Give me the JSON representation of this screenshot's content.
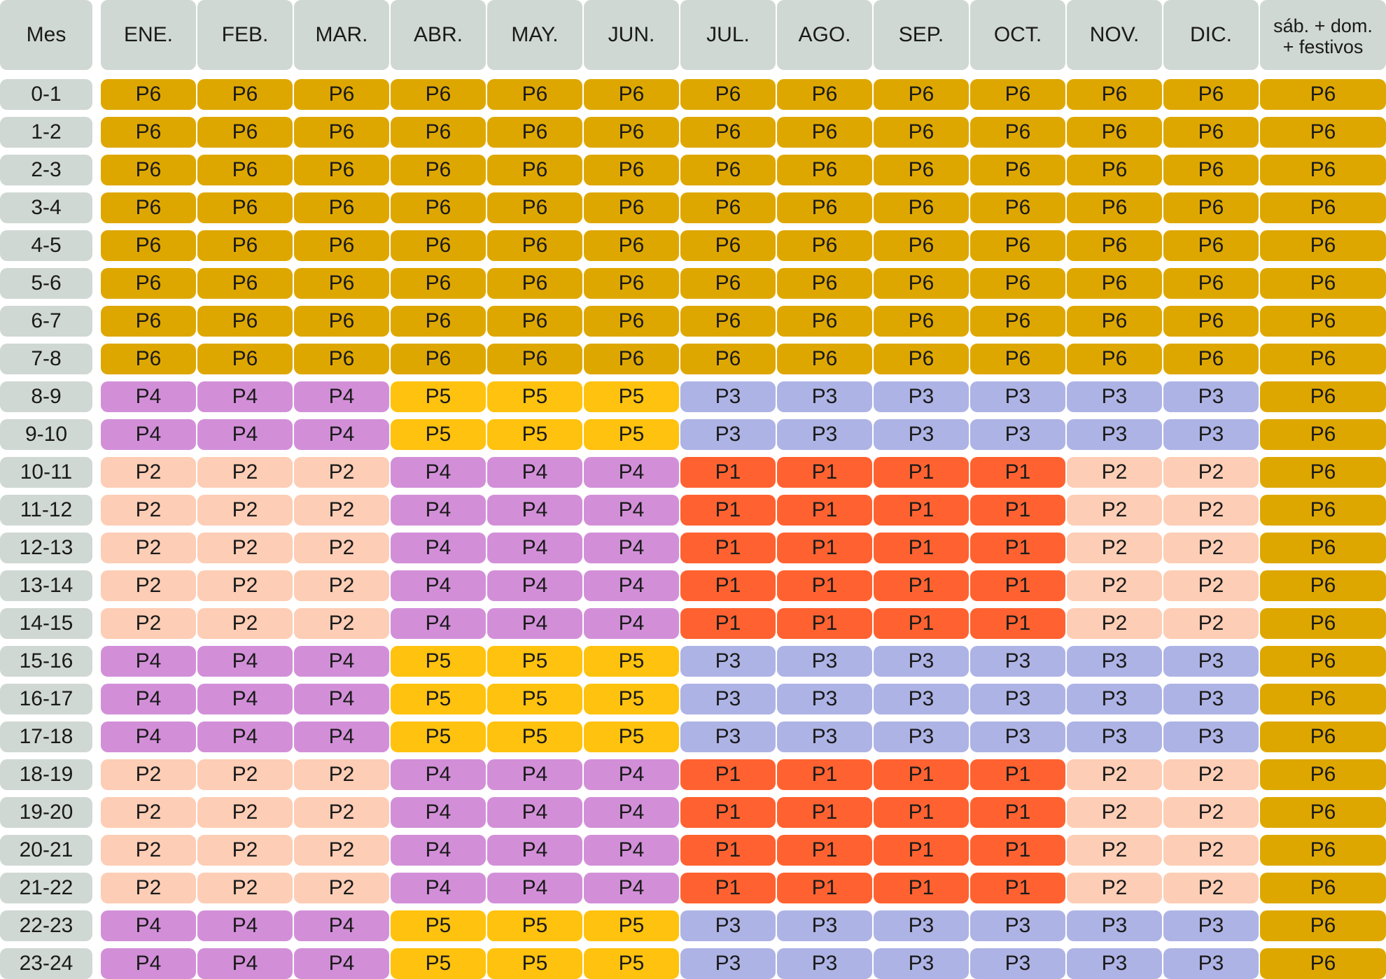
{
  "chart_data": {
    "type": "table",
    "corner_label": "Mes",
    "columns": [
      "ENE.",
      "FEB.",
      "MAR.",
      "ABR.",
      "MAY.",
      "JUN.",
      "JUL.",
      "AGO.",
      "SEP.",
      "OCT.",
      "NOV.",
      "DIC.",
      "sáb. + dom.\n+ festivos"
    ],
    "row_labels": [
      "0-1",
      "1-2",
      "2-3",
      "3-4",
      "4-5",
      "5-6",
      "6-7",
      "7-8",
      "8-9",
      "9-10",
      "10-11",
      "11-12",
      "12-13",
      "13-14",
      "14-15",
      "15-16",
      "16-17",
      "17-18",
      "18-19",
      "19-20",
      "20-21",
      "21-22",
      "22-23",
      "23-24"
    ],
    "rows": [
      [
        "P6",
        "P6",
        "P6",
        "P6",
        "P6",
        "P6",
        "P6",
        "P6",
        "P6",
        "P6",
        "P6",
        "P6",
        "P6"
      ],
      [
        "P6",
        "P6",
        "P6",
        "P6",
        "P6",
        "P6",
        "P6",
        "P6",
        "P6",
        "P6",
        "P6",
        "P6",
        "P6"
      ],
      [
        "P6",
        "P6",
        "P6",
        "P6",
        "P6",
        "P6",
        "P6",
        "P6",
        "P6",
        "P6",
        "P6",
        "P6",
        "P6"
      ],
      [
        "P6",
        "P6",
        "P6",
        "P6",
        "P6",
        "P6",
        "P6",
        "P6",
        "P6",
        "P6",
        "P6",
        "P6",
        "P6"
      ],
      [
        "P6",
        "P6",
        "P6",
        "P6",
        "P6",
        "P6",
        "P6",
        "P6",
        "P6",
        "P6",
        "P6",
        "P6",
        "P6"
      ],
      [
        "P6",
        "P6",
        "P6",
        "P6",
        "P6",
        "P6",
        "P6",
        "P6",
        "P6",
        "P6",
        "P6",
        "P6",
        "P6"
      ],
      [
        "P6",
        "P6",
        "P6",
        "P6",
        "P6",
        "P6",
        "P6",
        "P6",
        "P6",
        "P6",
        "P6",
        "P6",
        "P6"
      ],
      [
        "P6",
        "P6",
        "P6",
        "P6",
        "P6",
        "P6",
        "P6",
        "P6",
        "P6",
        "P6",
        "P6",
        "P6",
        "P6"
      ],
      [
        "P4",
        "P4",
        "P4",
        "P5",
        "P5",
        "P5",
        "P3",
        "P3",
        "P3",
        "P3",
        "P3",
        "P3",
        "P6"
      ],
      [
        "P4",
        "P4",
        "P4",
        "P5",
        "P5",
        "P5",
        "P3",
        "P3",
        "P3",
        "P3",
        "P3",
        "P3",
        "P6"
      ],
      [
        "P2",
        "P2",
        "P2",
        "P4",
        "P4",
        "P4",
        "P1",
        "P1",
        "P1",
        "P1",
        "P2",
        "P2",
        "P6"
      ],
      [
        "P2",
        "P2",
        "P2",
        "P4",
        "P4",
        "P4",
        "P1",
        "P1",
        "P1",
        "P1",
        "P2",
        "P2",
        "P6"
      ],
      [
        "P2",
        "P2",
        "P2",
        "P4",
        "P4",
        "P4",
        "P1",
        "P1",
        "P1",
        "P1",
        "P2",
        "P2",
        "P6"
      ],
      [
        "P2",
        "P2",
        "P2",
        "P4",
        "P4",
        "P4",
        "P1",
        "P1",
        "P1",
        "P1",
        "P2",
        "P2",
        "P6"
      ],
      [
        "P2",
        "P2",
        "P2",
        "P4",
        "P4",
        "P4",
        "P1",
        "P1",
        "P1",
        "P1",
        "P2",
        "P2",
        "P6"
      ],
      [
        "P4",
        "P4",
        "P4",
        "P5",
        "P5",
        "P5",
        "P3",
        "P3",
        "P3",
        "P3",
        "P3",
        "P3",
        "P6"
      ],
      [
        "P4",
        "P4",
        "P4",
        "P5",
        "P5",
        "P5",
        "P3",
        "P3",
        "P3",
        "P3",
        "P3",
        "P3",
        "P6"
      ],
      [
        "P4",
        "P4",
        "P4",
        "P5",
        "P5",
        "P5",
        "P3",
        "P3",
        "P3",
        "P3",
        "P3",
        "P3",
        "P6"
      ],
      [
        "P2",
        "P2",
        "P2",
        "P4",
        "P4",
        "P4",
        "P1",
        "P1",
        "P1",
        "P1",
        "P2",
        "P2",
        "P6"
      ],
      [
        "P2",
        "P2",
        "P2",
        "P4",
        "P4",
        "P4",
        "P1",
        "P1",
        "P1",
        "P1",
        "P2",
        "P2",
        "P6"
      ],
      [
        "P2",
        "P2",
        "P2",
        "P4",
        "P4",
        "P4",
        "P1",
        "P1",
        "P1",
        "P1",
        "P2",
        "P2",
        "P6"
      ],
      [
        "P2",
        "P2",
        "P2",
        "P4",
        "P4",
        "P4",
        "P1",
        "P1",
        "P1",
        "P1",
        "P2",
        "P2",
        "P6"
      ],
      [
        "P4",
        "P4",
        "P4",
        "P5",
        "P5",
        "P5",
        "P3",
        "P3",
        "P3",
        "P3",
        "P3",
        "P3",
        "P6"
      ],
      [
        "P4",
        "P4",
        "P4",
        "P5",
        "P5",
        "P5",
        "P3",
        "P3",
        "P3",
        "P3",
        "P3",
        "P3",
        "P6"
      ]
    ],
    "period_colors": {
      "P1": "#ff6230",
      "P2": "#fdcdb5",
      "P3": "#aeb3e5",
      "P4": "#d28fd8",
      "P5": "#ffc20e",
      "P6": "#dea700"
    },
    "header_color": "#d0d8d3"
  }
}
